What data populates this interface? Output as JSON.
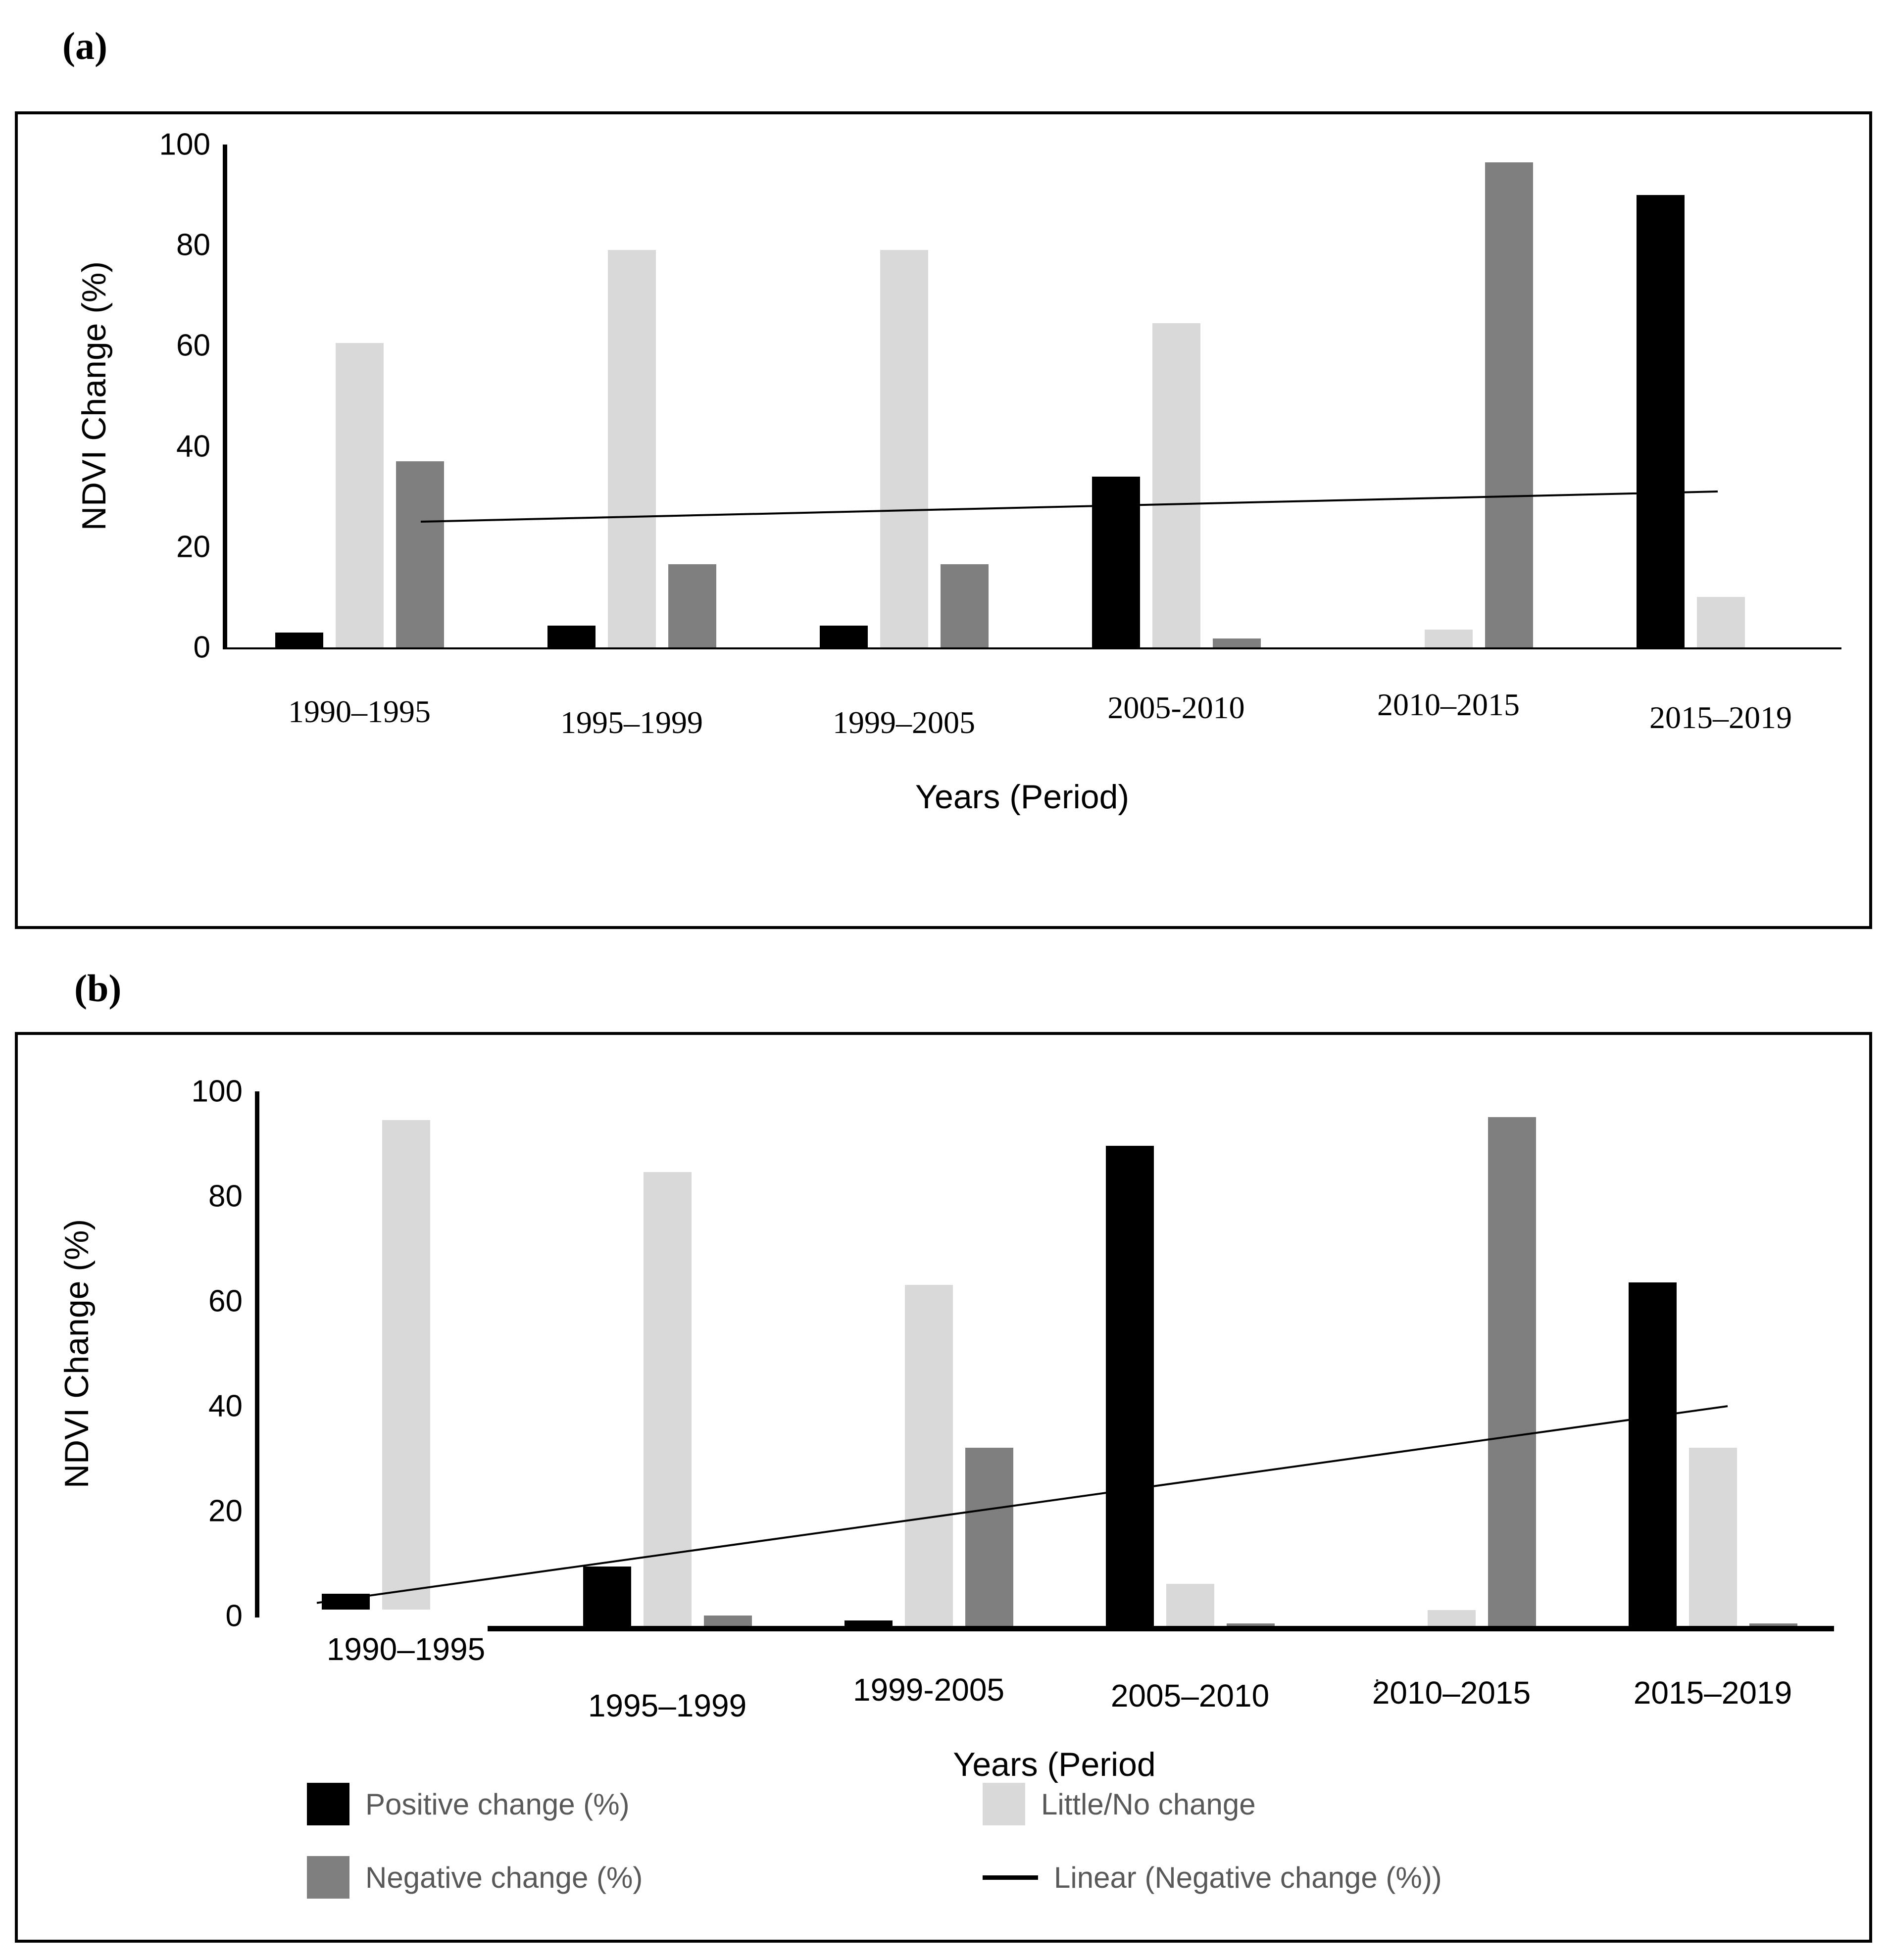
{
  "figure": {
    "panel_a_label": "(a)",
    "panel_b_label": "(b)"
  },
  "legend": {
    "text_color": "#595959",
    "items": [
      {
        "label": "Positive change (%)",
        "swatch": "square",
        "color": "#000000"
      },
      {
        "label": "Little/No change",
        "swatch": "square",
        "color": "#d9d9d9"
      },
      {
        "label": "Negative change (%)",
        "swatch": "square",
        "color": "#7f7f7f"
      },
      {
        "label": "Linear (Negative change (%))",
        "swatch": "line",
        "color": "#000000"
      }
    ]
  },
  "chart_data": [
    {
      "panel": "a",
      "type": "bar",
      "title": "",
      "xlabel": "Years (Period)",
      "ylabel": "NDVI Change (%)",
      "ylim": [
        0,
        100
      ],
      "yticks": [
        0,
        20,
        40,
        60,
        80,
        100
      ],
      "grid": false,
      "legend_position": "none",
      "categories": [
        "1990–1995",
        "1995–1999",
        "1999–2005",
        "2005-2010",
        "2010–2015",
        "2015–2019"
      ],
      "series": [
        {
          "name": "Positive change (%)",
          "color": "#000000",
          "values": [
            3,
            4.3,
            4.3,
            34,
            0,
            90
          ]
        },
        {
          "name": "Little/No change",
          "color": "#d9d9d9",
          "values": [
            60.5,
            79,
            79,
            64.5,
            3.5,
            10
          ]
        },
        {
          "name": "Negative change (%)",
          "color": "#7f7f7f",
          "values": [
            37,
            16.5,
            16.5,
            1.8,
            96.5,
            0
          ]
        }
      ],
      "trendline": {
        "name": "Linear (Negative change (%))",
        "color": "#000000",
        "start_value": 25,
        "end_value": 31
      }
    },
    {
      "panel": "b",
      "type": "bar",
      "title": "",
      "xlabel": "Years (Period",
      "ylabel": "NDVI Change (%)",
      "ylim": [
        0,
        100
      ],
      "yticks": [
        0,
        20,
        40,
        60,
        80,
        100
      ],
      "grid": false,
      "legend_position": "bottom",
      "stray_mark": ":",
      "categories": [
        "1990–1995",
        "1995–1999",
        "1999-2005",
        "2005–2010",
        "2010–2015",
        "2015–2019"
      ],
      "series": [
        {
          "name": "Positive change (%)",
          "color": "#000000",
          "values": [
            3,
            11.3,
            1,
            91.5,
            0,
            65.5
          ]
        },
        {
          "name": "Little/No change",
          "color": "#d9d9d9",
          "values": [
            93.3,
            86.5,
            65,
            8,
            3,
            34
          ]
        },
        {
          "name": "Negative change (%)",
          "color": "#7f7f7f",
          "values": [
            0,
            2,
            34,
            0.5,
            97,
            0.5
          ]
        }
      ],
      "trendline": {
        "name": "Linear (Negative change (%))",
        "color": "#000000",
        "start_value": 2.5,
        "end_value": 40
      }
    }
  ]
}
